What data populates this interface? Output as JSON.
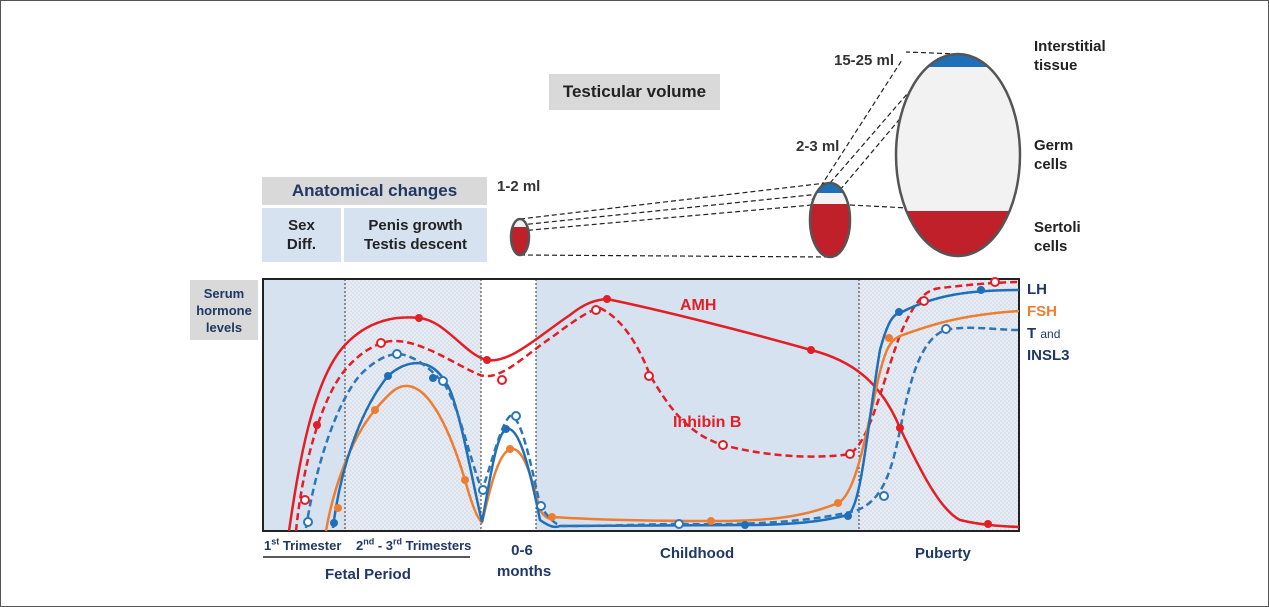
{
  "testicular_volume": {
    "title": "Testicular volume",
    "stages": [
      {
        "volume": "1-2 ml"
      },
      {
        "volume": "2-3 ml"
      },
      {
        "volume": "15-25 ml"
      }
    ],
    "compartments": [
      {
        "label": "Interstitial tissue",
        "color": "#1f6fb8"
      },
      {
        "label": "Germ cells",
        "color": "#f2f2f2"
      },
      {
        "label": "Sertoli cells",
        "color": "#c0202a"
      }
    ]
  },
  "anatomical_changes": {
    "title": "Anatomical changes",
    "items": [
      {
        "label": "Sex Diff."
      },
      {
        "label": "Penis growth Testis descent"
      }
    ]
  },
  "serum_hormone": {
    "title": "Serum hormone levels"
  },
  "periods": {
    "first_trimester": "1st Trimester",
    "second_third": "2nd - 3rd Trimesters",
    "fetal": "Fetal Period",
    "neonatal": "0-6 months",
    "childhood": "Childhood",
    "puberty": "Puberty"
  },
  "legend": {
    "lh": {
      "label": "LH",
      "color": "#1f6fb8"
    },
    "fsh": {
      "label": "FSH",
      "color": "#ed7d31"
    },
    "t": {
      "label": "T",
      "suffix": "and",
      "color": "#2e75b6"
    },
    "insl3": {
      "label": "INSL3",
      "color": "#1f3864"
    }
  },
  "curve_labels": {
    "amh": {
      "label": "AMH",
      "color": "#e31e24"
    },
    "inhibin_b": {
      "label": "Inhibin B",
      "color": "#e31e24"
    }
  }
}
